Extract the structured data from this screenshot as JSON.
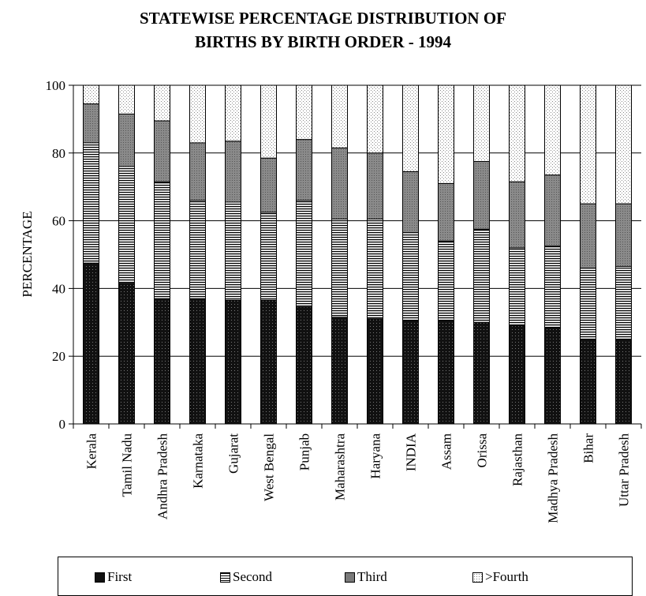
{
  "title_line1": "STATEWISE PERCENTAGE DISTRIBUTION OF",
  "title_line2": "BIRTHS BY BIRTH ORDER - 1994",
  "chart_data": {
    "type": "bar",
    "stacked": true,
    "title": "STATEWISE PERCENTAGE DISTRIBUTION OF BIRTHS BY BIRTH ORDER - 1994",
    "xlabel": "",
    "ylabel": "PERCENTAGE",
    "ylim": [
      0,
      100
    ],
    "yticks": [
      0,
      20,
      40,
      60,
      80,
      100
    ],
    "grid": true,
    "legend_position": "bottom",
    "categories": [
      "Kerala",
      "Tamil Nadu",
      "Andhra Pradesh",
      "Karnataka",
      "Gujarat",
      "West Bengal",
      "Punjab",
      "Maharashtra",
      "Haryana",
      "INDIA",
      "Assam",
      "Orissa",
      "Rajasthan",
      "Madhya Pradesh",
      "Bihar",
      "Uttar Pradesh"
    ],
    "series": [
      {
        "name": "First",
        "pattern": "dense-dark-dots",
        "values": [
          47.5,
          41.5,
          37.0,
          37.0,
          36.5,
          36.5,
          34.5,
          31.5,
          31.0,
          30.5,
          30.5,
          30.0,
          29.0,
          28.5,
          25.0,
          25.0
        ]
      },
      {
        "name": "Second",
        "pattern": "horizontal-lines",
        "values": [
          35.5,
          34.5,
          34.5,
          29.0,
          29.0,
          26.0,
          31.5,
          29.0,
          29.5,
          26.0,
          23.5,
          27.5,
          23.0,
          24.0,
          21.0,
          21.5
        ]
      },
      {
        "name": "Third",
        "pattern": "gray-dots",
        "values": [
          11.5,
          15.5,
          18.0,
          17.0,
          18.0,
          16.0,
          18.0,
          21.0,
          19.5,
          18.0,
          17.0,
          20.0,
          19.5,
          21.0,
          19.0,
          18.5
        ]
      },
      {
        "name": ">Fourth",
        "pattern": "light-dots",
        "values": [
          5.5,
          8.5,
          10.5,
          17.0,
          16.5,
          21.5,
          16.0,
          18.5,
          20.0,
          25.5,
          29.0,
          22.5,
          28.5,
          26.5,
          35.0,
          35.0
        ]
      }
    ]
  }
}
